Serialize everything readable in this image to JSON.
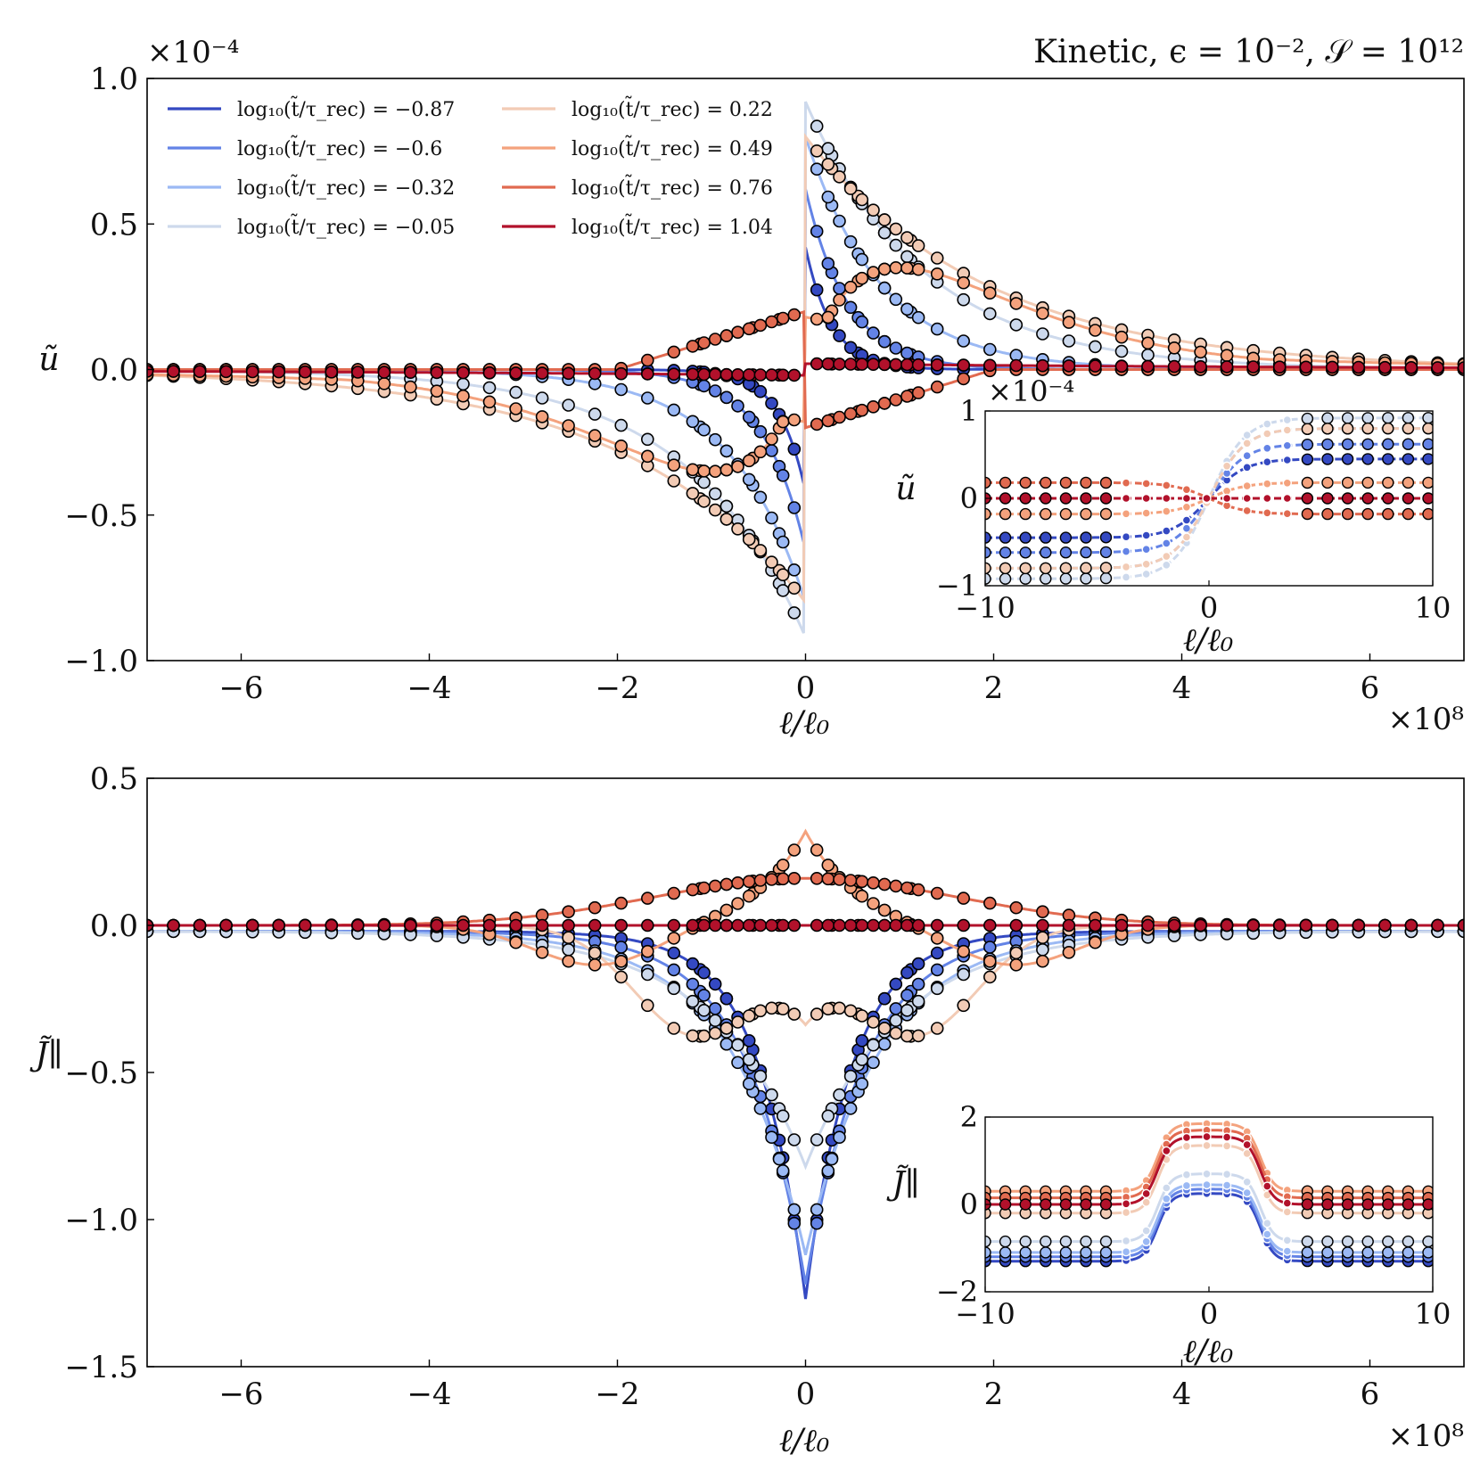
{
  "colors": [
    "#3449c2",
    "#6383e6",
    "#9bb9f4",
    "#cdd9ec",
    "#f2cbb5",
    "#f4a27d",
    "#e16a50",
    "#b2112b"
  ],
  "chart_data": [
    {
      "type": "line",
      "title": "Kinetic, ϵ = 10⁻², 𝒮 = 10¹²",
      "xlabel": "ℓ/ℓ₀",
      "ylabel": "ũ",
      "x_scale_label": "×10⁸",
      "y_scale_label": "×10⁻⁴",
      "xlim": [
        -7,
        7
      ],
      "ylim": [
        -1.0,
        1.0
      ],
      "xticks": [
        "−6",
        "−4",
        "−2",
        "0",
        "2",
        "4",
        "6"
      ],
      "yticks": [
        "1.0",
        "0.5",
        "0.0",
        "−0.5",
        "−1.0"
      ],
      "legend": "top-left, two columns",
      "series": [
        {
          "name": "log₁₀(t̃/τ_rec) = −0.87",
          "peak": 0.42,
          "width": 0.28
        },
        {
          "name": "log₁₀(t̃/τ_rec) = −0.6",
          "peak": 0.62,
          "width": 0.45
        },
        {
          "name": "log₁₀(t̃/τ_rec) = −0.32",
          "peak": 0.8,
          "width": 0.8
        },
        {
          "name": "log₁₀(t̃/τ_rec) = −0.05",
          "peak": 0.92,
          "width": 1.25
        },
        {
          "name": "log₁₀(t̃/τ_rec) = 0.22",
          "peak": 0.8,
          "width": 1.9
        },
        {
          "name": "log₁₀(t̃/τ_rec) = 0.49",
          "peak": 0.35,
          "width": 2.6
        },
        {
          "name": "log₁₀(t̃/τ_rec) = 0.76",
          "peak": -0.2,
          "width": 2.6
        },
        {
          "name": "log₁₀(t̃/τ_rec) = 1.04",
          "peak": 0.02,
          "width": 3.0
        }
      ],
      "inset": {
        "xlabel": "ℓ/ℓ₀",
        "ylabel": "ũ",
        "y_scale_label": "×10⁻⁴",
        "xlim": [
          -10,
          10
        ],
        "ylim": [
          -1,
          1
        ],
        "xticks": [
          "−10",
          "0",
          "10"
        ],
        "yticks": [
          "1",
          "0",
          "−1"
        ],
        "right_values": [
          0.45,
          0.62,
          0.8,
          0.92,
          0.8,
          0.18,
          -0.18,
          0.0
        ]
      }
    },
    {
      "type": "line",
      "xlabel": "ℓ/ℓ₀",
      "ylabel": "J̃∥",
      "x_scale_label": "×10⁸",
      "xlim": [
        -7,
        7
      ],
      "ylim": [
        -1.5,
        0.5
      ],
      "xticks": [
        "−6",
        "−4",
        "−2",
        "0",
        "2",
        "4",
        "6"
      ],
      "yticks": [
        "0.5",
        "0.0",
        "−0.5",
        "−1.0",
        "−1.5"
      ],
      "series": [
        {
          "name": "log₁₀(t̃/τ_rec) = −0.87",
          "center": -1.25,
          "width": 0.9,
          "far": -0.02
        },
        {
          "name": "log₁₀(t̃/τ_rec) = −0.6",
          "center": -1.2,
          "width": 1.15,
          "far": -0.02
        },
        {
          "name": "log₁₀(t̃/τ_rec) = −0.32",
          "center": -1.1,
          "width": 1.45,
          "far": -0.02
        },
        {
          "name": "log₁₀(t̃/τ_rec) = −0.05",
          "center": -0.8,
          "width": 1.8,
          "far": -0.02
        },
        {
          "name": "log₁₀(t̃/τ_rec) = 0.22",
          "center": -0.28,
          "width": 2.4,
          "far": -0.02
        },
        {
          "name": "log₁₀(t̃/τ_rec) = 0.49",
          "center": 0.32,
          "width": 2.4,
          "far": -0.02
        },
        {
          "name": "log₁₀(t̃/τ_rec) = 0.76",
          "center": 0.16,
          "width": 2.8,
          "far": 0.0
        },
        {
          "name": "log₁₀(t̃/τ_rec) = 1.04",
          "center": 0.0,
          "width": 2.0,
          "far": 0.0
        }
      ],
      "inset": {
        "xlabel": "ℓ/ℓ₀",
        "ylabel": "J̃∥",
        "xlim": [
          -10,
          10
        ],
        "ylim": [
          -2,
          2
        ],
        "xticks": [
          "−10",
          "0",
          "10"
        ],
        "yticks": [
          "2",
          "0",
          "−2"
        ],
        "outer_values": [
          -1.3,
          -1.2,
          -1.1,
          -0.85,
          -0.2,
          0.3,
          0.15,
          0.0
        ],
        "bump_height": 1.55
      }
    }
  ]
}
